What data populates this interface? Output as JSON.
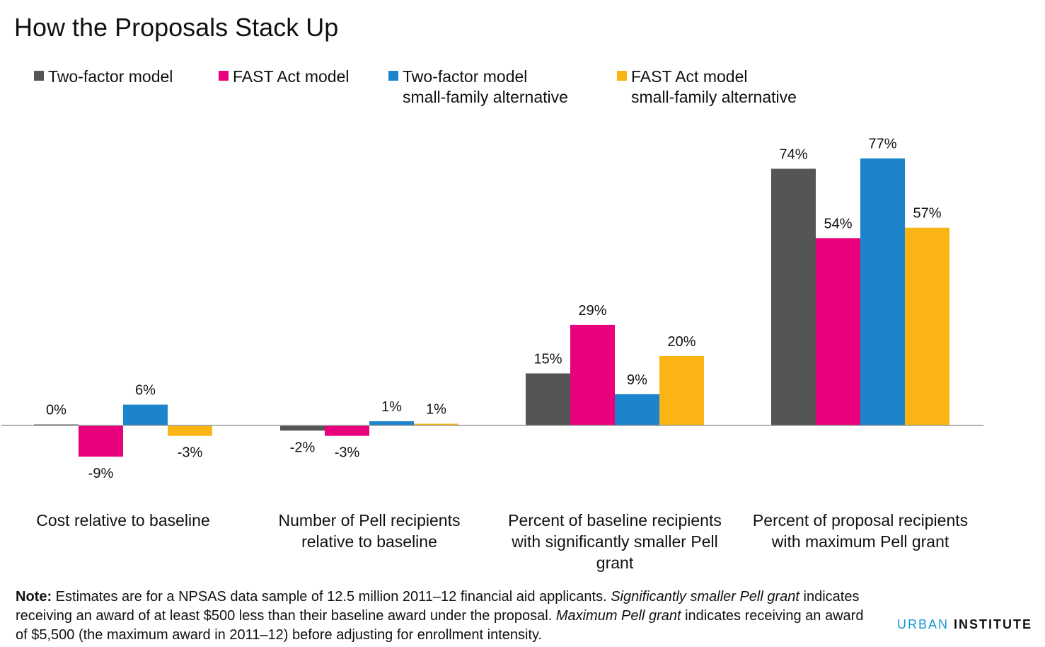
{
  "title": "How the Proposals Stack Up",
  "legend": [
    {
      "lines": [
        "Two-factor model"
      ],
      "color": "#555555"
    },
    {
      "lines": [
        "FAST Act model"
      ],
      "color": "#e8007d"
    },
    {
      "lines": [
        "Two-factor model",
        "small-family alternative"
      ],
      "color": "#1b84cc"
    },
    {
      "lines": [
        "FAST Act model",
        "small-family alternative"
      ],
      "color": "#fab514"
    }
  ],
  "chart_data": {
    "type": "bar",
    "title": "How the Proposals Stack Up",
    "categories": [
      [
        "Cost relative to baseline"
      ],
      [
        "Number of Pell recipients",
        "relative to baseline"
      ],
      [
        "Percent of baseline recipients",
        "with significantly smaller Pell",
        "grant"
      ],
      [
        "Percent of proposal recipients",
        "with maximum Pell grant"
      ]
    ],
    "series": [
      {
        "name": "Two-factor model",
        "color": "#555555",
        "values": [
          0.3,
          -1.5,
          15,
          74
        ],
        "labels": [
          "0%",
          "-2%",
          "15%",
          "74%"
        ]
      },
      {
        "name": "FAST Act model",
        "color": "#e8007d",
        "values": [
          -9,
          -3,
          29,
          54
        ],
        "labels": [
          "-9%",
          "-3%",
          "29%",
          "54%"
        ]
      },
      {
        "name": "Two-factor model small-family alternative",
        "color": "#1b84cc",
        "values": [
          6,
          1.2,
          9,
          77
        ],
        "labels": [
          "6%",
          "1%",
          "9%",
          "77%"
        ]
      },
      {
        "name": "FAST Act model small-family alternative",
        "color": "#fab514",
        "values": [
          -3,
          0.5,
          20,
          57
        ],
        "labels": [
          "-3%",
          "1%",
          "20%",
          "57%"
        ]
      }
    ],
    "ylim": [
      -20,
      80
    ],
    "grid": false,
    "legend_position": "top"
  },
  "note": {
    "label": "Note:",
    "t1": " Estimates are for a NPSAS data sample of 12.5 million 2011–12 financial aid applicants. ",
    "i1": "Significantly smaller Pell grant",
    "t2": " indicates receiving an award of at least $500 less than their baseline award under the proposal.  ",
    "i2": "Maximum Pell grant",
    "t3": " indicates receiving an award of $5,500 (the maximum award in 2011–12) before adjusting for enrollment intensity."
  },
  "brand": {
    "part1": "URBAN",
    "part2": " INSTITUTE"
  }
}
